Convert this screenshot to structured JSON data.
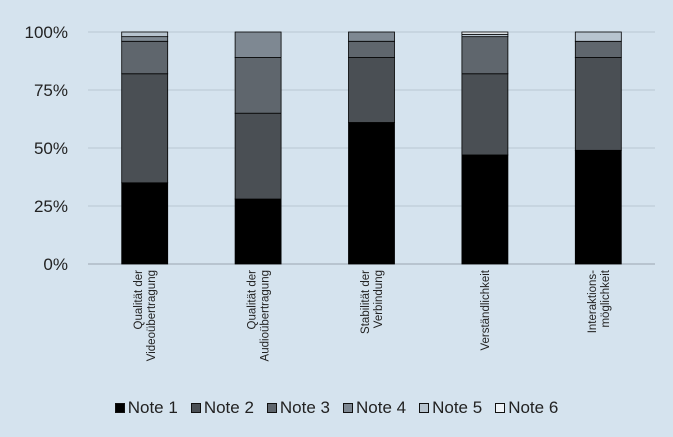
{
  "chart_data": {
    "type": "bar",
    "stacked": true,
    "categories": [
      [
        "Qualität der",
        "Videoübertragung"
      ],
      [
        "Qualität der",
        "Audioübertragung"
      ],
      [
        "Stabilität der",
        "Verbindung"
      ],
      [
        "Verständlichkeit"
      ],
      [
        "Interaktions-",
        "möglichkeit"
      ]
    ],
    "series": [
      {
        "name": "Note 1",
        "color": "#000000",
        "values": [
          35,
          28,
          61,
          47,
          49
        ]
      },
      {
        "name": "Note 2",
        "color": "#4a4f54",
        "values": [
          47,
          37,
          28,
          35,
          40
        ]
      },
      {
        "name": "Note 3",
        "color": "#5f666d",
        "values": [
          14,
          24,
          7,
          16,
          7
        ]
      },
      {
        "name": "Note 4",
        "color": "#7e8892",
        "values": [
          2,
          11,
          4,
          0,
          0
        ]
      },
      {
        "name": "Note 5",
        "color": "#b7c4cf",
        "values": [
          2,
          0,
          0,
          1,
          4
        ]
      },
      {
        "name": "Note 6",
        "color": "#eef3f7",
        "values": [
          0,
          0,
          0,
          1,
          0
        ]
      }
    ],
    "yticks": [
      "0%",
      "25%",
      "50%",
      "75%",
      "100%"
    ],
    "ylim": [
      0,
      100
    ],
    "grid": true,
    "legend": "bottom",
    "title": "",
    "xlabel": "",
    "ylabel": ""
  }
}
